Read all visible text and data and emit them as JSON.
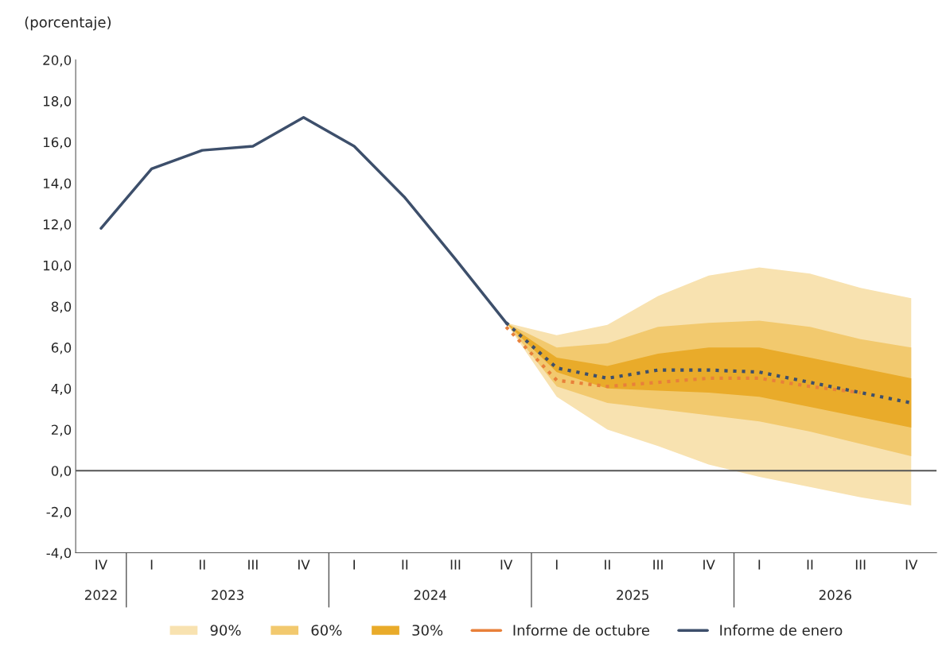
{
  "chart_data": {
    "type": "line",
    "ylabel": "(porcentaje)",
    "categories": [
      "IV",
      "I",
      "II",
      "III",
      "IV",
      "I",
      "II",
      "III",
      "IV",
      "I",
      "II",
      "III",
      "IV",
      "I",
      "II",
      "III",
      "IV"
    ],
    "annotations": [
      "2022",
      "2023",
      "2024",
      "2025",
      "2026"
    ],
    "ylim": [
      -4,
      20
    ],
    "yticks": [
      {
        "value": -4,
        "label": "-4,0"
      },
      {
        "value": -2,
        "label": "-2,0"
      },
      {
        "value": 0,
        "label": "0,0"
      },
      {
        "value": 2,
        "label": "2,0"
      },
      {
        "value": 4,
        "label": "4,0"
      },
      {
        "value": 6,
        "label": "6,0"
      },
      {
        "value": 8,
        "label": "8,0"
      },
      {
        "value": 10,
        "label": "10,0"
      },
      {
        "value": 12,
        "label": "12,0"
      },
      {
        "value": 14,
        "label": "14,0"
      },
      {
        "value": 16,
        "label": "16,0"
      },
      {
        "value": 18,
        "label": "18,0"
      },
      {
        "value": 20,
        "label": "20,0"
      }
    ],
    "ref_lines": [
      {
        "axis": "y",
        "value": 0,
        "color": "#555555"
      }
    ],
    "legend": "bottom",
    "series": [
      {
        "name": "90%",
        "color": "#f8e2b0",
        "values": [
          null,
          null,
          null,
          null,
          null,
          null,
          null,
          null,
          null,
          null,
          null,
          null,
          null,
          null,
          null,
          null,
          null
        ],
        "lower": [
          null,
          null,
          null,
          null,
          null,
          null,
          null,
          null,
          7.2,
          3.6,
          2.0,
          1.2,
          0.3,
          -0.3,
          -0.8,
          -1.3,
          -1.7
        ],
        "upper": [
          null,
          null,
          null,
          null,
          null,
          null,
          null,
          null,
          7.2,
          6.6,
          7.1,
          8.5,
          9.5,
          9.9,
          9.6,
          8.9,
          8.4
        ]
      },
      {
        "name": "60%",
        "color": "#f2c96e",
        "values": [
          null,
          null,
          null,
          null,
          null,
          null,
          null,
          null,
          null,
          null,
          null,
          null,
          null,
          null,
          null,
          null,
          null
        ],
        "lower": [
          null,
          null,
          null,
          null,
          null,
          null,
          null,
          null,
          7.2,
          4.1,
          3.3,
          3.0,
          2.7,
          2.4,
          1.9,
          1.3,
          0.7
        ],
        "upper": [
          null,
          null,
          null,
          null,
          null,
          null,
          null,
          null,
          7.2,
          6.0,
          6.2,
          7.0,
          7.2,
          7.3,
          7.0,
          6.4,
          6.0
        ]
      },
      {
        "name": "30%",
        "color": "#e9ab2a",
        "values": [
          null,
          null,
          null,
          null,
          null,
          null,
          null,
          null,
          null,
          null,
          null,
          null,
          null,
          null,
          null,
          null,
          null
        ],
        "lower": [
          null,
          null,
          null,
          null,
          null,
          null,
          null,
          null,
          7.2,
          4.8,
          4.0,
          3.9,
          3.8,
          3.6,
          3.1,
          2.6,
          2.1
        ],
        "upper": [
          null,
          null,
          null,
          null,
          null,
          null,
          null,
          null,
          7.2,
          5.5,
          5.1,
          5.7,
          6.0,
          6.0,
          5.5,
          5.0,
          4.5
        ]
      },
      {
        "name": "Informe de octubre",
        "line_style": "dotted",
        "color": "#e8803a",
        "values": [
          null,
          null,
          null,
          null,
          null,
          null,
          null,
          null,
          7.0,
          4.4,
          4.1,
          4.3,
          4.5,
          4.5,
          4.1,
          3.8,
          null
        ]
      },
      {
        "name": "Informe de enero",
        "line_style": "solid",
        "color": "#3d4f6b",
        "values": [
          11.8,
          14.7,
          15.6,
          15.8,
          17.2,
          15.8,
          13.3,
          10.3,
          7.2,
          null,
          null,
          null,
          null,
          null,
          null,
          null,
          null
        ]
      },
      {
        "line_style": "dotted",
        "color": "#3d4f6b",
        "values": [
          null,
          null,
          null,
          null,
          null,
          null,
          null,
          null,
          7.2,
          5.0,
          4.5,
          4.9,
          4.9,
          4.8,
          4.3,
          3.8,
          3.3
        ]
      }
    ]
  }
}
